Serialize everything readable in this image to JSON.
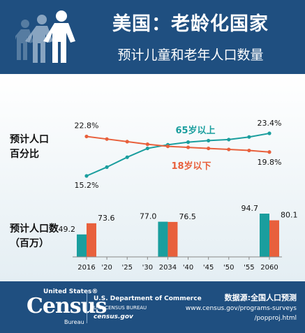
{
  "header": {
    "title": "美国：老龄化国家",
    "subtitle": "预计儿童和老年人口数量"
  },
  "labels": {
    "percent_label_line1": "预计人口",
    "percent_label_line2": "百分比",
    "count_label_line1": "预计人口数",
    "count_label_line2": "（百万）"
  },
  "chart_data": [
    {
      "type": "line",
      "ylabel": "预计人口百分比",
      "x": [
        "2016",
        "'20",
        "'25",
        "'30",
        "2034",
        "'40",
        "'45",
        "'50",
        "'55",
        "2060"
      ],
      "series": [
        {
          "name": "65岁以上",
          "values": [
            15.2,
            16.9,
            18.8,
            20.5,
            21.2,
            21.7,
            22.0,
            22.2,
            22.7,
            23.4
          ],
          "color": "#1a9e9e"
        },
        {
          "name": "18岁以下",
          "values": [
            22.8,
            22.3,
            21.8,
            21.3,
            20.9,
            20.7,
            20.5,
            20.3,
            20.1,
            19.8
          ],
          "color": "#e8603c"
        }
      ],
      "data_labels": [
        {
          "series": "65岁以上",
          "x": "2016",
          "text": "15.2%"
        },
        {
          "series": "65岁以上",
          "x": "2060",
          "text": "23.4%"
        },
        {
          "series": "18岁以下",
          "x": "2016",
          "text": "22.8%"
        },
        {
          "series": "18岁以下",
          "x": "2060",
          "text": "19.8%"
        }
      ]
    },
    {
      "type": "bar",
      "ylabel": "预计人口数（百万）",
      "categories": [
        "2016",
        "2034",
        "2060"
      ],
      "series": [
        {
          "name": "65岁以上",
          "values": [
            49.2,
            77.0,
            94.7
          ],
          "color": "#1a9e9e"
        },
        {
          "name": "18岁以下",
          "values": [
            73.6,
            76.5,
            80.1
          ],
          "color": "#e8603c"
        }
      ],
      "xticks": [
        "2016",
        "'20",
        "'25",
        "'30",
        "2034",
        "'40",
        "'45",
        "'50",
        "'55",
        "2060"
      ]
    }
  ],
  "footer": {
    "brand_small": "United States®",
    "brand_big": "Census",
    "brand_bureau": "Bureau",
    "dept_line1": "U.S. Department of Commerce",
    "dept_line2": "U.S. CENSUS BUREAU",
    "dept_line3": "census.gov",
    "source_label": "数据源:全国人口预测",
    "source_url1": "www.census.gov/programs-surveys",
    "source_url2": "/popproj.html"
  },
  "colors": {
    "header_bg": "#1f4f80",
    "teal": "#1a9e9e",
    "orange": "#e8603c"
  }
}
